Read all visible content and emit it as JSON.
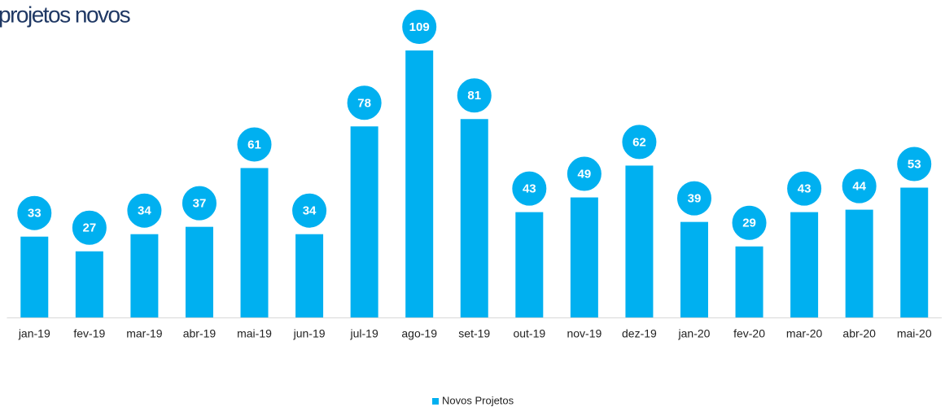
{
  "chart_data": {
    "type": "bar",
    "title": "projetos novos",
    "categories": [
      "jan-19",
      "fev-19",
      "mar-19",
      "abr-19",
      "mai-19",
      "jun-19",
      "jul-19",
      "ago-19",
      "set-19",
      "out-19",
      "nov-19",
      "dez-19",
      "jan-20",
      "fev-20",
      "mar-20",
      "abr-20",
      "mai-20"
    ],
    "series": [
      {
        "name": "Novos Projetos",
        "color": "#00b0f0",
        "values": [
          33,
          27,
          34,
          37,
          61,
          34,
          78,
          109,
          81,
          43,
          49,
          62,
          39,
          29,
          43,
          44,
          53
        ]
      }
    ],
    "legend": "bottom"
  }
}
